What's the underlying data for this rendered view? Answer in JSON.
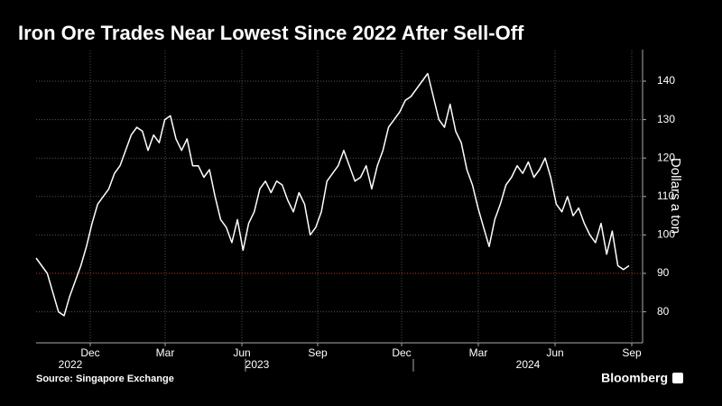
{
  "chart_data": {
    "type": "line",
    "title": "Iron Ore Trades Near Lowest Since 2022 After Sell-Off",
    "y_label": "Dollars a ton",
    "source": "Source: Singapore Exchange",
    "brand": "Bloomberg",
    "month_ticks": [
      "Dec",
      "Mar",
      "Jun",
      "Sep",
      "Dec",
      "Mar",
      "Jun",
      "Sep"
    ],
    "year_ticks": [
      "2022",
      "2023",
      "2024"
    ],
    "series": [
      {
        "name": "Iron ore",
        "color": "#ffffff",
        "values": [
          94,
          92,
          90,
          85,
          80,
          79,
          84,
          88,
          92,
          97,
          103,
          108,
          110,
          112,
          116,
          118,
          122,
          126,
          128,
          127,
          122,
          126,
          124,
          130,
          131,
          125,
          122,
          125,
          118,
          118,
          115,
          117,
          110,
          104,
          102,
          98,
          104,
          96,
          103,
          106,
          112,
          114,
          111,
          114,
          113,
          109,
          106,
          111,
          108,
          100,
          102,
          106,
          114,
          116,
          118,
          122,
          118,
          114,
          115,
          118,
          112,
          118,
          122,
          128,
          130,
          132,
          135,
          136,
          138,
          140,
          142,
          136,
          130,
          128,
          134,
          127,
          124,
          117,
          113,
          107,
          102,
          97,
          104,
          108,
          113,
          115,
          118,
          116,
          119,
          115,
          117,
          120,
          115,
          108,
          106,
          110,
          105,
          107,
          103,
          100,
          98,
          103,
          95,
          101,
          92,
          91,
          92
        ]
      }
    ],
    "hline": {
      "value": 90,
      "color": "#c0392b"
    },
    "ylim": [
      72,
      148
    ],
    "yticks": [
      80,
      90,
      100,
      110,
      120,
      130,
      140
    ],
    "grid": true
  }
}
